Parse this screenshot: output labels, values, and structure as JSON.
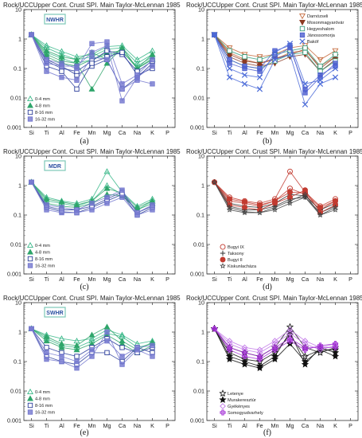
{
  "colors": {
    "green_light": "#3ab889",
    "green_med": "#2fa56b",
    "blue_open": "#2e3f9c",
    "blue_fill": "#7478cf",
    "region_box": "#7dc7b8",
    "region_text": "#2a4fa0",
    "red": "#c23b30",
    "magenta": "#a433d6",
    "violet": "#c27ae8",
    "black": "#111111"
  },
  "figure": {
    "panel_titles": [
      "Rock/UCCUpper Cont. Crust SPI. Main Taylor-McLennan 1985",
      "Rock/UCCUpper Cont. Crust SPI. Main Taylor-McLennan 1985",
      "Rock/UCCUpper Cont. Crust SPI. Main Taylor-McLennan 1985",
      "Rock/UCCUpper Cont. Crust SPI. Main Taylor-McLennan 1985",
      "Rock/UCCUpper Cont. Crust SPI. Main Taylor-McLennan 1985",
      "Rock/UCCUpper Cont. Crust SPI. Main Taylor-McLennan 1985"
    ],
    "panel_labels": [
      "(a)",
      "(b)",
      "(c)",
      "(d)",
      "(e)",
      "(f)"
    ],
    "region_labels": {
      "a": "NWHR",
      "c": "MDR",
      "e": "SWHR"
    },
    "size_legend": [
      "0-4 mm",
      "4-8 mm",
      "8-16 mm",
      "16-32 mm"
    ],
    "site_legend_b": [
      "Darnózseli",
      "Mosonmagyaróvár",
      "Hegyeshalom",
      "Jánossomorja",
      "Bakóf"
    ],
    "site_legend_d": [
      "Bugyi IX",
      "Taksony",
      "Bugyi II",
      "Kiskunlacháza"
    ],
    "site_legend_f": [
      "Letenye",
      "Murakeresztúr",
      "Gyékényes",
      "Somogyudvarhely"
    ]
  },
  "chart_data": [
    {
      "type": "line",
      "panel": "a",
      "title": "Rock/UCCUpper Cont. Crust SPI. Main Taylor-McLennan 1985",
      "x": [
        "Si",
        "Ti",
        "Al",
        "Fe",
        "Mn",
        "Mg",
        "Ca",
        "Na",
        "K",
        "P"
      ],
      "yscale": "log",
      "ylim": [
        0.001,
        10
      ],
      "yticks": [
        "0.001",
        "0.01",
        "0.1",
        "1",
        "10"
      ],
      "series": [
        {
          "name": "0-4 mm",
          "values": [
            1.4,
            0.6,
            0.38,
            0.25,
            0.3,
            0.55,
            0.6,
            0.2,
            0.4,
            null
          ]
        },
        {
          "name": "0-4 mm",
          "values": [
            1.4,
            0.5,
            0.3,
            0.2,
            0.25,
            0.45,
            0.5,
            0.15,
            0.3,
            null
          ]
        },
        {
          "name": "0-4 mm",
          "values": [
            1.4,
            0.35,
            0.22,
            0.15,
            0.2,
            0.3,
            0.35,
            0.12,
            0.25,
            null
          ]
        },
        {
          "name": "4-8 mm",
          "values": [
            1.4,
            0.4,
            0.25,
            0.2,
            0.35,
            0.2,
            0.5,
            0.1,
            0.3,
            null
          ]
        },
        {
          "name": "4-8 mm",
          "values": [
            1.4,
            0.3,
            0.18,
            0.15,
            0.02,
            0.15,
            0.5,
            0.1,
            0.22,
            null
          ]
        },
        {
          "name": "4-8 mm",
          "values": [
            1.4,
            0.25,
            0.15,
            0.12,
            0.2,
            0.35,
            0.4,
            0.1,
            0.2,
            null
          ]
        },
        {
          "name": "8-16 mm",
          "values": [
            1.4,
            0.2,
            0.12,
            0.06,
            0.12,
            0.2,
            0.02,
            0.05,
            0.15,
            null
          ]
        },
        {
          "name": "8-16 mm",
          "values": [
            1.4,
            0.18,
            0.1,
            0.08,
            0.18,
            0.4,
            0.3,
            0.08,
            0.18,
            null
          ]
        },
        {
          "name": "8-16 mm",
          "values": [
            1.4,
            0.12,
            0.08,
            0.02,
            0.15,
            0.25,
            0.35,
            0.06,
            0.1,
            null
          ]
        },
        {
          "name": "16-32 mm",
          "values": [
            1.4,
            0.15,
            0.12,
            0.12,
            0.35,
            0.6,
            0.008,
            0.05,
            0.12,
            null
          ]
        },
        {
          "name": "16-32 mm",
          "values": [
            1.4,
            0.08,
            0.05,
            0.04,
            0.25,
            0.2,
            0.02,
            0.04,
            0.03,
            null
          ]
        },
        {
          "name": "16-32 mm",
          "values": [
            1.4,
            0.2,
            0.15,
            0.1,
            0.7,
            0.8,
            0.03,
            0.06,
            0.2,
            null
          ]
        }
      ]
    },
    {
      "type": "line",
      "panel": "b",
      "title": "Rock/UCCUpper Cont. Crust SPI. Main Taylor-McLennan 1985",
      "x": [
        "Si",
        "Ti",
        "Al",
        "Fe",
        "Mn",
        "Mg",
        "Ca",
        "Na",
        "K",
        "P"
      ],
      "yscale": "log",
      "ylim": [
        0.001,
        10
      ],
      "yticks": [
        "0.001",
        "0.01",
        "0.1",
        "1",
        "10"
      ],
      "series": [
        {
          "name": "Darnózseli",
          "values": [
            1.4,
            0.5,
            0.3,
            0.25,
            0.3,
            0.5,
            0.6,
            0.2,
            0.4,
            null
          ]
        },
        {
          "name": "Darnózseli",
          "values": [
            1.4,
            0.35,
            0.2,
            0.15,
            0.2,
            0.35,
            0.4,
            0.12,
            0.25,
            null
          ]
        },
        {
          "name": "Mosonmagyaróvár",
          "values": [
            1.4,
            0.3,
            0.18,
            0.15,
            0.22,
            0.3,
            0.45,
            0.1,
            0.25,
            null
          ]
        },
        {
          "name": "Mosonmagyaróvár",
          "values": [
            1.4,
            0.25,
            0.15,
            0.12,
            0.15,
            0.25,
            0.3,
            0.08,
            0.2,
            null
          ]
        },
        {
          "name": "Hegyeshalom",
          "values": [
            1.4,
            0.4,
            0.25,
            0.2,
            0.3,
            0.4,
            0.5,
            0.12,
            0.3,
            null
          ]
        },
        {
          "name": "Hegyeshalom",
          "values": [
            1.4,
            0.2,
            0.12,
            0.1,
            0.18,
            0.3,
            0.35,
            0.08,
            0.18,
            null
          ]
        },
        {
          "name": "Jánossomorja",
          "values": [
            1.4,
            0.15,
            0.1,
            0.08,
            0.25,
            0.5,
            0.02,
            0.06,
            0.12,
            null
          ]
        },
        {
          "name": "Jánossomorja",
          "values": [
            1.4,
            0.2,
            0.12,
            0.1,
            0.4,
            0.6,
            0.015,
            0.05,
            0.15,
            null
          ]
        },
        {
          "name": "Bakóf",
          "values": [
            1.4,
            0.05,
            0.03,
            0.02,
            0.2,
            0.3,
            0.006,
            0.03,
            0.05,
            null
          ]
        },
        {
          "name": "Bakóf",
          "values": [
            1.4,
            0.1,
            0.06,
            0.05,
            0.35,
            0.7,
            0.03,
            0.04,
            0.1,
            null
          ]
        }
      ]
    },
    {
      "type": "line",
      "panel": "c",
      "title": "Rock/UCCUpper Cont. Crust SPI. Main Taylor-McLennan 1985",
      "x": [
        "Si",
        "Ti",
        "Al",
        "Fe",
        "Mn",
        "Mg",
        "Ca",
        "Na",
        "K",
        "P"
      ],
      "yscale": "log",
      "ylim": [
        0.001,
        10
      ],
      "yticks": [
        "0.001",
        "0.01",
        "0.1",
        "1",
        "10"
      ],
      "series": [
        {
          "name": "0-4 mm",
          "values": [
            1.3,
            0.4,
            0.3,
            0.25,
            0.35,
            3.0,
            0.6,
            0.2,
            0.35,
            null
          ]
        },
        {
          "name": "0-4 mm",
          "values": [
            1.3,
            0.3,
            0.25,
            0.2,
            0.3,
            1.0,
            0.5,
            0.15,
            0.3,
            null
          ]
        },
        {
          "name": "4-8 mm",
          "values": [
            1.3,
            0.35,
            0.28,
            0.22,
            0.3,
            0.8,
            0.55,
            0.18,
            0.3,
            null
          ]
        },
        {
          "name": "4-8 mm",
          "values": [
            1.3,
            0.25,
            0.2,
            0.18,
            0.25,
            0.5,
            0.45,
            0.15,
            0.25,
            null
          ]
        },
        {
          "name": "8-16 mm",
          "values": [
            1.3,
            0.2,
            0.15,
            0.15,
            0.2,
            0.35,
            0.6,
            0.12,
            0.2,
            null
          ]
        },
        {
          "name": "8-16 mm",
          "values": [
            1.3,
            0.18,
            0.13,
            0.12,
            0.18,
            0.3,
            0.5,
            0.1,
            0.18,
            null
          ]
        },
        {
          "name": "16-32 mm",
          "values": [
            1.3,
            0.15,
            0.12,
            0.12,
            0.15,
            0.25,
            0.4,
            0.1,
            0.15,
            null
          ]
        },
        {
          "name": "16-32 mm",
          "values": [
            1.3,
            0.22,
            0.18,
            0.15,
            0.25,
            0.4,
            0.7,
            0.12,
            0.22,
            null
          ]
        }
      ]
    },
    {
      "type": "line",
      "panel": "d",
      "title": "Rock/UCCUpper Cont. Crust SPI. Main Taylor-McLennan 1985",
      "x": [
        "Si",
        "Ti",
        "Al",
        "Fe",
        "Mn",
        "Mg",
        "Ca",
        "Na",
        "K",
        "P"
      ],
      "yscale": "log",
      "ylim": [
        0.001,
        10
      ],
      "yticks": [
        "0.001",
        "0.01",
        "0.1",
        "1",
        "10"
      ],
      "series": [
        {
          "name": "Bugyi IX",
          "values": [
            1.3,
            0.4,
            0.3,
            0.25,
            0.35,
            3.0,
            0.6,
            0.2,
            0.35,
            null
          ]
        },
        {
          "name": "Bugyi IX",
          "values": [
            1.3,
            0.3,
            0.25,
            0.2,
            0.3,
            0.8,
            0.5,
            0.15,
            0.3,
            null
          ]
        },
        {
          "name": "Taksony",
          "values": [
            1.3,
            0.25,
            0.2,
            0.18,
            0.25,
            0.5,
            0.45,
            0.15,
            0.25,
            null
          ]
        },
        {
          "name": "Taksony",
          "values": [
            1.3,
            0.2,
            0.15,
            0.15,
            0.2,
            0.35,
            0.4,
            0.12,
            0.2,
            null
          ]
        },
        {
          "name": "Bugyi II",
          "values": [
            1.3,
            0.35,
            0.28,
            0.22,
            0.3,
            0.6,
            0.55,
            0.18,
            0.3,
            null
          ]
        },
        {
          "name": "Bugyi II",
          "values": [
            1.3,
            0.22,
            0.18,
            0.15,
            0.25,
            0.4,
            0.7,
            0.12,
            0.22,
            null
          ]
        },
        {
          "name": "Kiskunlacháza",
          "values": [
            1.3,
            0.18,
            0.13,
            0.12,
            0.18,
            0.3,
            0.5,
            0.1,
            0.18,
            null
          ]
        },
        {
          "name": "Kiskunlacháza",
          "values": [
            1.3,
            0.15,
            0.12,
            0.12,
            0.15,
            0.25,
            0.4,
            0.1,
            0.15,
            null
          ]
        }
      ]
    },
    {
      "type": "line",
      "panel": "e",
      "title": "Rock/UCCUpper Cont. Crust SPI. Main Taylor-McLennan 1985",
      "x": [
        "Si",
        "Ti",
        "Al",
        "Fe",
        "Mn",
        "Mg",
        "Ca",
        "Na",
        "K",
        "P"
      ],
      "yscale": "log",
      "ylim": [
        0.001,
        10
      ],
      "yticks": [
        "0.001",
        "0.01",
        "0.1",
        "1",
        "10"
      ],
      "series": [
        {
          "name": "0-4 mm",
          "values": [
            1.3,
            0.8,
            0.6,
            0.5,
            0.6,
            1.2,
            0.8,
            0.4,
            0.5,
            null
          ]
        },
        {
          "name": "0-4 mm",
          "values": [
            1.3,
            0.6,
            0.35,
            0.3,
            0.5,
            0.9,
            0.7,
            0.3,
            0.4,
            null
          ]
        },
        {
          "name": "4-8 mm",
          "values": [
            1.3,
            0.7,
            0.4,
            0.35,
            0.8,
            1.5,
            0.5,
            0.25,
            0.45,
            null
          ]
        },
        {
          "name": "4-8 mm",
          "values": [
            1.3,
            0.5,
            0.3,
            0.25,
            0.4,
            0.8,
            0.4,
            0.2,
            0.35,
            null
          ]
        },
        {
          "name": "8-16 mm",
          "values": [
            1.3,
            0.3,
            0.2,
            0.15,
            0.3,
            0.6,
            0.3,
            0.2,
            0.3,
            null
          ]
        },
        {
          "name": "8-16 mm",
          "values": [
            1.3,
            0.15,
            0.1,
            0.08,
            0.2,
            0.2,
            0.1,
            0.3,
            0.2,
            null
          ]
        },
        {
          "name": "16-32 mm",
          "values": [
            1.3,
            0.12,
            0.1,
            0.06,
            0.15,
            1.0,
            0.08,
            0.25,
            0.15,
            null
          ]
        },
        {
          "name": "16-32 mm",
          "values": [
            1.3,
            0.2,
            0.15,
            0.1,
            0.25,
            0.5,
            0.15,
            0.3,
            0.35,
            null
          ]
        }
      ]
    },
    {
      "type": "line",
      "panel": "f",
      "title": "Rock/UCCUpper Cont. Crust SPI. Main Taylor-McLennan 1985",
      "x": [
        "Si",
        "Ti",
        "Al",
        "Fe",
        "Mn",
        "Mg",
        "Ca",
        "Na",
        "K",
        "P"
      ],
      "yscale": "log",
      "ylim": [
        0.001,
        10
      ],
      "yticks": [
        "0.001",
        "0.01",
        "0.1",
        "1",
        "10"
      ],
      "series": [
        {
          "name": "Letenye",
          "values": [
            1.3,
            0.3,
            0.2,
            0.15,
            0.3,
            1.5,
            0.3,
            0.2,
            0.3,
            null
          ]
        },
        {
          "name": "Letenye",
          "values": [
            1.3,
            0.2,
            0.12,
            0.1,
            0.2,
            0.8,
            0.15,
            0.25,
            0.25,
            null
          ]
        },
        {
          "name": "Murakeresztúr",
          "values": [
            1.3,
            0.15,
            0.1,
            0.07,
            0.15,
            1.0,
            0.08,
            0.3,
            0.2,
            null
          ]
        },
        {
          "name": "Murakeresztúr",
          "values": [
            1.3,
            0.12,
            0.08,
            0.06,
            0.12,
            0.4,
            0.1,
            0.25,
            0.15,
            null
          ]
        },
        {
          "name": "Gyékényes",
          "values": [
            1.3,
            0.5,
            0.3,
            0.25,
            0.5,
            1.2,
            0.5,
            0.3,
            0.4,
            null
          ]
        },
        {
          "name": "Gyékényes",
          "values": [
            1.3,
            0.4,
            0.25,
            0.2,
            0.4,
            0.9,
            0.4,
            0.25,
            0.35,
            null
          ]
        },
        {
          "name": "Somogyudvarhely",
          "values": [
            1.3,
            0.3,
            0.2,
            0.15,
            0.3,
            0.6,
            0.3,
            0.3,
            0.3,
            null
          ]
        },
        {
          "name": "Somogyudvarhely",
          "values": [
            1.3,
            0.25,
            0.15,
            0.12,
            0.25,
            0.5,
            0.25,
            0.35,
            0.4,
            null
          ]
        }
      ]
    }
  ]
}
